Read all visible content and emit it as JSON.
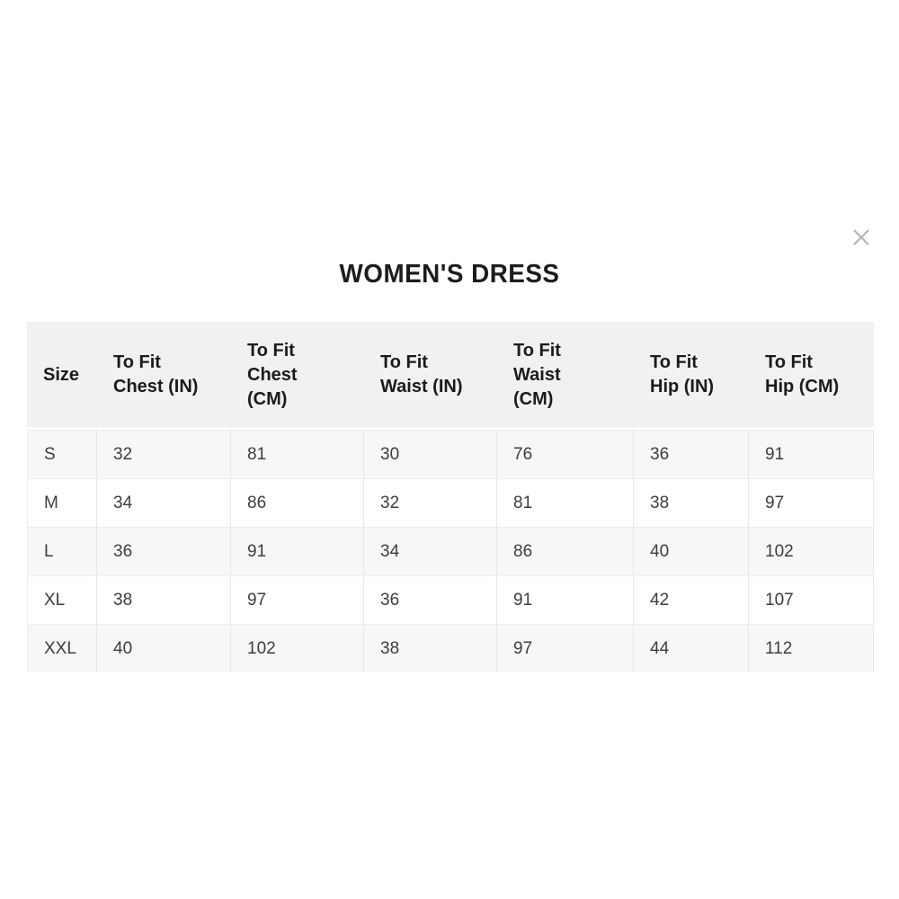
{
  "modal": {
    "title": "WOMEN'S DRESS"
  },
  "size_chart": {
    "columns": [
      "Size",
      "To Fit\nChest (IN)",
      "To Fit\nChest\n(CM)",
      "To Fit\nWaist (IN)",
      "To Fit\nWaist\n(CM)",
      "To Fit\nHip (IN)",
      "To Fit\nHip (CM)"
    ],
    "rows": [
      [
        "S",
        "32",
        "81",
        "30",
        "76",
        "36",
        "91"
      ],
      [
        "M",
        "34",
        "86",
        "32",
        "81",
        "38",
        "97"
      ],
      [
        "L",
        "36",
        "91",
        "34",
        "86",
        "40",
        "102"
      ],
      [
        "XL",
        "38",
        "97",
        "36",
        "91",
        "42",
        "107"
      ],
      [
        "XXL",
        "40",
        "102",
        "38",
        "97",
        "44",
        "112"
      ]
    ],
    "colors": {
      "header_bg": "#f1f1f0",
      "row_alt_bg": "#f7f7f7",
      "row_bg": "#ffffff",
      "border": "#e7e7e7",
      "header_text": "#1b1b1b",
      "body_text": "#3d3d3d",
      "close": "#b1b1b1"
    }
  },
  "icons": {
    "close": "close-x"
  }
}
